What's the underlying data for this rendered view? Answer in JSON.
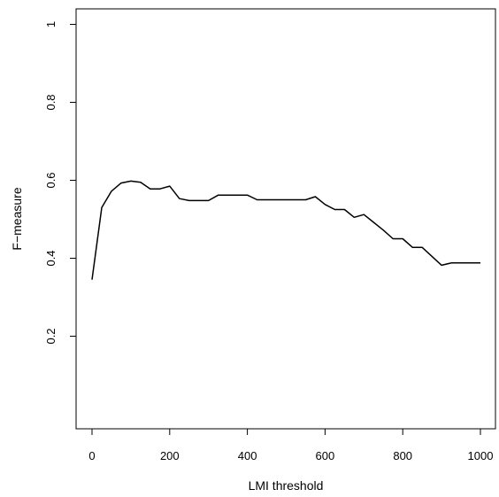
{
  "chart_data": {
    "type": "line",
    "title": "",
    "xlabel": "LMI threshold",
    "ylabel": "F−measure",
    "xlim": [
      0,
      1000
    ],
    "ylim": [
      0,
      1
    ],
    "x_ticks": [
      0,
      200,
      400,
      600,
      800,
      1000
    ],
    "x_tick_labels": [
      "0",
      "200",
      "400",
      "600",
      "800",
      "1000"
    ],
    "y_ticks": [
      0.2,
      0.4,
      0.6,
      0.8,
      1
    ],
    "y_tick_labels": [
      "0.2",
      "0.4",
      "0.6",
      "0.8",
      "1"
    ],
    "grid": false,
    "line_color": "#000000",
    "series": [
      {
        "x": [
          0,
          25,
          50,
          75,
          100,
          125,
          150,
          175,
          200,
          225,
          250,
          275,
          300,
          325,
          350,
          375,
          400,
          425,
          450,
          475,
          500,
          525,
          550,
          575,
          600,
          625,
          650,
          675,
          700,
          725,
          750,
          775,
          800,
          825,
          850,
          875,
          900,
          925,
          950,
          975,
          1000
        ],
        "y": [
          0.345,
          0.53,
          0.572,
          0.593,
          0.598,
          0.595,
          0.578,
          0.578,
          0.585,
          0.553,
          0.548,
          0.548,
          0.548,
          0.562,
          0.562,
          0.562,
          0.562,
          0.55,
          0.55,
          0.55,
          0.55,
          0.55,
          0.55,
          0.558,
          0.538,
          0.525,
          0.525,
          0.505,
          0.512,
          0.492,
          0.472,
          0.45,
          0.45,
          0.428,
          0.428,
          0.405,
          0.382,
          0.388,
          0.388,
          0.388,
          0.388
        ]
      }
    ]
  }
}
